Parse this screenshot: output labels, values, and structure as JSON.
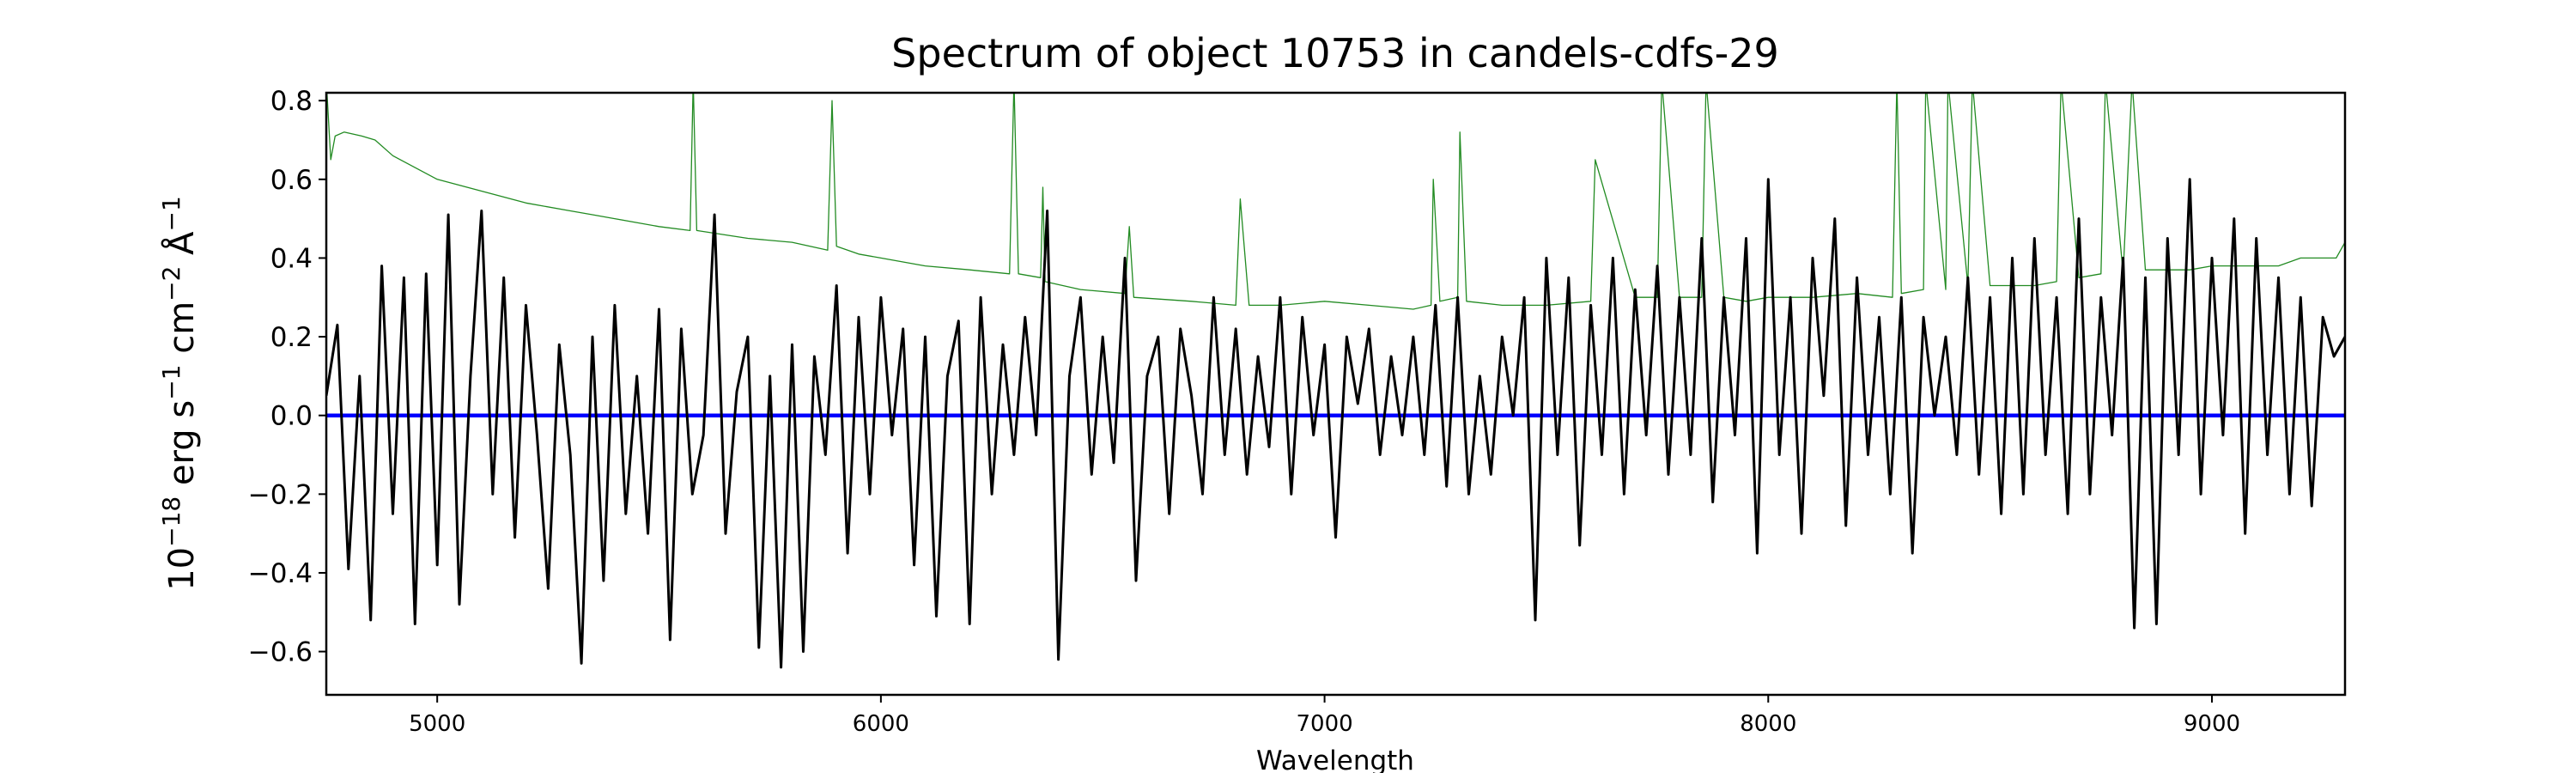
{
  "chart_data": {
    "type": "line",
    "title": "Spectrum of object 10753 in candels-cdfs-29",
    "xlabel": "Wavelength",
    "ylabel": "10^-18 erg s^-1 cm^-2 Å^-1",
    "ylabel_parts": {
      "base": "10",
      "exp1": "−18",
      "t1": " erg s",
      "exp2": "−1",
      "t2": " cm",
      "exp3": "−2",
      "t3": " Å",
      "exp4": "−1"
    },
    "xlim": [
      4750,
      9300
    ],
    "ylim": [
      -0.71,
      0.82
    ],
    "xticks": [
      5000,
      6000,
      7000,
      8000,
      9000
    ],
    "yticks": [
      -0.6,
      -0.4,
      -0.2,
      0.0,
      0.2,
      0.4,
      0.6,
      0.8
    ],
    "ytick_labels": [
      "−0.6",
      "−0.4",
      "−0.2",
      "0.0",
      "0.2",
      "0.4",
      "0.6",
      "0.8"
    ],
    "grid": false,
    "series": [
      {
        "role": "flux",
        "color": "#000000",
        "x_start": 4750,
        "x_step": 25,
        "values": [
          0.05,
          0.23,
          -0.39,
          0.1,
          -0.52,
          0.38,
          -0.25,
          0.35,
          -0.53,
          0.36,
          -0.38,
          0.51,
          -0.48,
          0.1,
          0.52,
          -0.2,
          0.35,
          -0.31,
          0.28,
          -0.05,
          -0.44,
          0.18,
          -0.1,
          -0.63,
          0.2,
          -0.42,
          0.28,
          -0.25,
          0.1,
          -0.3,
          0.27,
          -0.57,
          0.22,
          -0.2,
          -0.05,
          0.51,
          -0.3,
          0.06,
          0.2,
          -0.59,
          0.1,
          -0.64,
          0.18,
          -0.6,
          0.15,
          -0.1,
          0.33,
          -0.35,
          0.25,
          -0.2,
          0.3,
          -0.05,
          0.22,
          -0.38,
          0.2,
          -0.51,
          0.1,
          0.24,
          -0.53,
          0.3,
          -0.2,
          0.18,
          -0.1,
          0.25,
          -0.05,
          0.52,
          -0.62,
          0.1,
          0.3,
          -0.15,
          0.2,
          -0.12,
          0.4,
          -0.42,
          0.1,
          0.2,
          -0.25,
          0.22,
          0.05,
          -0.2,
          0.3,
          -0.1,
          0.22,
          -0.15,
          0.15,
          -0.08,
          0.3,
          -0.2,
          0.25,
          -0.05,
          0.18,
          -0.31,
          0.2,
          0.03,
          0.22,
          -0.1,
          0.15,
          -0.05,
          0.2,
          -0.1,
          0.28,
          -0.18,
          0.3,
          -0.2,
          0.1,
          -0.15,
          0.2,
          0.0,
          0.3,
          -0.52,
          0.4,
          -0.1,
          0.35,
          -0.33,
          0.28,
          -0.1,
          0.4,
          -0.2,
          0.32,
          -0.05,
          0.38,
          -0.15,
          0.3,
          -0.1,
          0.45,
          -0.22,
          0.3,
          -0.05,
          0.45,
          -0.35,
          0.6,
          -0.1,
          0.3,
          -0.3,
          0.4,
          0.05,
          0.5,
          -0.28,
          0.35,
          -0.1,
          0.25,
          -0.2,
          0.3,
          -0.35,
          0.25,
          0.0,
          0.2,
          -0.1,
          0.35,
          -0.15,
          0.3,
          -0.25,
          0.4,
          -0.2,
          0.45,
          -0.1,
          0.3,
          -0.25,
          0.5,
          -0.2,
          0.3,
          -0.05,
          0.4,
          -0.54,
          0.35,
          -0.53,
          0.45,
          -0.1,
          0.6,
          -0.2,
          0.4,
          -0.05,
          0.5,
          -0.3,
          0.45,
          -0.1,
          0.35,
          -0.2,
          0.3,
          -0.23,
          0.25,
          0.15,
          0.2
        ]
      },
      {
        "role": "error",
        "color": "#228b22",
        "x": [
          4750,
          4760,
          4770,
          4790,
          4830,
          4860,
          4900,
          4950,
          5000,
          5100,
          5200,
          5300,
          5350,
          5400,
          5500,
          5570,
          5577,
          5585,
          5700,
          5800,
          5880,
          5890,
          5900,
          5950,
          6000,
          6100,
          6200,
          6290,
          6300,
          6310,
          6360,
          6365,
          6370,
          6450,
          6550,
          6560,
          6570,
          6700,
          6800,
          6810,
          6830,
          6900,
          7000,
          7100,
          7200,
          7240,
          7245,
          7260,
          7300,
          7305,
          7320,
          7400,
          7500,
          7600,
          7610,
          7700,
          7750,
          7760,
          7800,
          7850,
          7860,
          7900,
          7950,
          8000,
          8100,
          8200,
          8280,
          8290,
          8300,
          8350,
          8355,
          8400,
          8405,
          8450,
          8460,
          8500,
          8600,
          8650,
          8660,
          8700,
          8750,
          8760,
          8800,
          8820,
          8850,
          8900,
          8950,
          9000,
          9050,
          9100,
          9150,
          9200,
          9250,
          9280,
          9300
        ],
        "values": [
          0.85,
          0.65,
          0.71,
          0.72,
          0.71,
          0.7,
          0.66,
          0.63,
          0.6,
          0.57,
          0.54,
          0.52,
          0.51,
          0.5,
          0.48,
          0.47,
          0.85,
          0.47,
          0.45,
          0.44,
          0.42,
          0.8,
          0.43,
          0.41,
          0.4,
          0.38,
          0.37,
          0.36,
          0.85,
          0.36,
          0.35,
          0.58,
          0.34,
          0.32,
          0.31,
          0.48,
          0.3,
          0.29,
          0.28,
          0.55,
          0.28,
          0.28,
          0.29,
          0.28,
          0.27,
          0.28,
          0.6,
          0.29,
          0.3,
          0.72,
          0.29,
          0.28,
          0.28,
          0.29,
          0.65,
          0.3,
          0.3,
          0.85,
          0.3,
          0.3,
          0.85,
          0.3,
          0.29,
          0.3,
          0.3,
          0.31,
          0.3,
          0.85,
          0.31,
          0.32,
          0.85,
          0.32,
          0.85,
          0.33,
          0.85,
          0.33,
          0.33,
          0.34,
          0.85,
          0.35,
          0.36,
          0.85,
          0.36,
          0.85,
          0.37,
          0.37,
          0.37,
          0.38,
          0.38,
          0.38,
          0.38,
          0.4,
          0.4,
          0.4,
          0.44
        ]
      },
      {
        "role": "zero-line",
        "color": "#0000ff",
        "x": [
          4750,
          9300
        ],
        "values": [
          0,
          0
        ]
      }
    ]
  }
}
